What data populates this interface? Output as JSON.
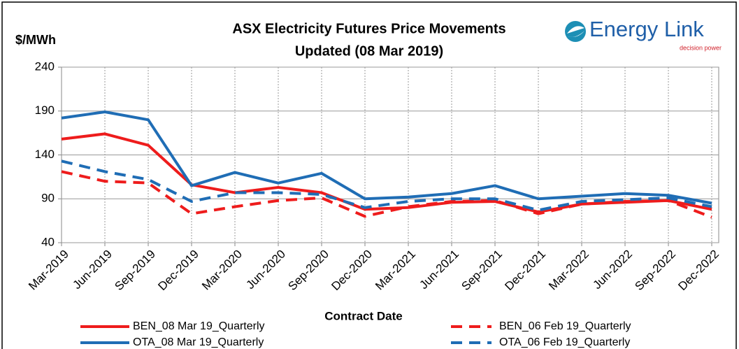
{
  "chart_data": {
    "type": "line",
    "title": "ASX Electricity Futures Price Movements",
    "subtitle": "Updated (08 Mar 2019)",
    "y_label": "$/MWh",
    "x_label": "Contract Date",
    "logo": {
      "text": "Energy Link",
      "tagline": "decision power"
    },
    "categories": [
      "Mar-2019",
      "Jun-2019",
      "Sep-2019",
      "Dec-2019",
      "Mar-2020",
      "Jun-2020",
      "Sep-2020",
      "Dec-2020",
      "Mar-2021",
      "Jun-2021",
      "Sep-2021",
      "Dec-2021",
      "Mar-2022",
      "Jun-2022",
      "Sep-2022",
      "Dec-2022"
    ],
    "ylim": [
      40,
      240
    ],
    "yticks": [
      40,
      90,
      140,
      190,
      240
    ],
    "grid": true,
    "legend": "bottom",
    "series": [
      {
        "name": "BEN_08 Mar 19_Quarterly",
        "color": "#ee1c1c",
        "dashed": false,
        "values": [
          158,
          164,
          151,
          106,
          97,
          103,
          97,
          78,
          80,
          86,
          87,
          75,
          84,
          86,
          88,
          78
        ]
      },
      {
        "name": "BEN_06 Feb 19_Quarterly",
        "color": "#ee1c1c",
        "dashed": true,
        "values": [
          121,
          110,
          108,
          73,
          81,
          88,
          91,
          70,
          81,
          87,
          88,
          73,
          84,
          87,
          88,
          69
        ]
      },
      {
        "name": "OTA_08 Mar 19_Quarterly",
        "color": "#1f6db5",
        "dashed": false,
        "values": [
          182,
          189,
          180,
          105,
          120,
          108,
          119,
          90,
          92,
          96,
          105,
          90,
          93,
          96,
          94,
          85
        ]
      },
      {
        "name": "OTA_06 Feb 19_Quarterly",
        "color": "#1f6db5",
        "dashed": true,
        "values": [
          133,
          121,
          112,
          87,
          97,
          97,
          95,
          80,
          87,
          90,
          90,
          77,
          87,
          89,
          91,
          81
        ]
      }
    ]
  }
}
